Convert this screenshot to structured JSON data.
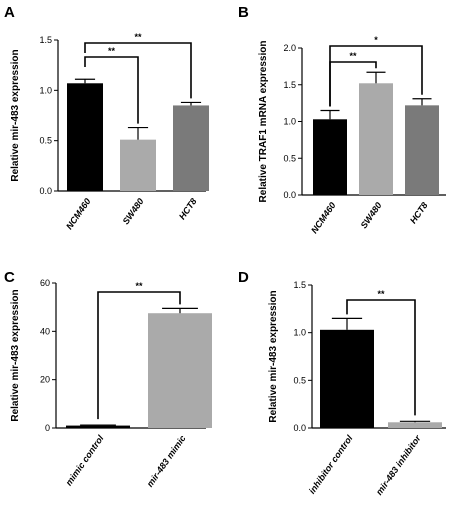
{
  "chart_data": [
    {
      "panel": "A",
      "type": "bar",
      "ylabel": "Relative mir-483 expression",
      "categories": [
        "NCM460",
        "SW480",
        "HCT8"
      ],
      "values": [
        1.07,
        0.51,
        0.85
      ],
      "errors": [
        0.04,
        0.12,
        0.03
      ],
      "colors": [
        "#000000",
        "#aaaaaa",
        "#7a7a7a"
      ],
      "ylim": [
        0,
        1.5
      ],
      "yticks": [
        0,
        0.5,
        1.0,
        1.5
      ],
      "ytick_labels": [
        "0.0",
        "0.5",
        "1.0",
        "1.5"
      ],
      "significance": [
        {
          "from": 0,
          "to": 1,
          "label": "**"
        },
        {
          "from": 0,
          "to": 2,
          "label": "**"
        }
      ]
    },
    {
      "panel": "B",
      "type": "bar",
      "ylabel": "Relative TRAF1 mRNA expression",
      "categories": [
        "NCM460",
        "SW480",
        "HCT8"
      ],
      "values": [
        1.03,
        1.52,
        1.22
      ],
      "errors": [
        0.12,
        0.15,
        0.09
      ],
      "colors": [
        "#000000",
        "#aaaaaa",
        "#7a7a7a"
      ],
      "ylim": [
        0,
        2.0
      ],
      "yticks": [
        0,
        0.5,
        1.0,
        1.5,
        2.0
      ],
      "ytick_labels": [
        "0.0",
        "0.5",
        "1.0",
        "1.5",
        "2.0"
      ],
      "significance": [
        {
          "from": 0,
          "to": 1,
          "label": "**"
        },
        {
          "from": 0,
          "to": 2,
          "label": "*"
        }
      ]
    },
    {
      "panel": "C",
      "type": "bar",
      "ylabel": "Relative mir-483 expression",
      "categories": [
        "mimic control",
        "mir-483 mimic"
      ],
      "values": [
        1.0,
        47.5
      ],
      "errors": [
        0.2,
        2.0
      ],
      "colors": [
        "#000000",
        "#aaaaaa"
      ],
      "ylim": [
        0,
        60
      ],
      "yticks": [
        0,
        20,
        40,
        60
      ],
      "ytick_labels": [
        "0",
        "20",
        "40",
        "60"
      ],
      "significance": [
        {
          "from": 0,
          "to": 1,
          "label": "**"
        }
      ]
    },
    {
      "panel": "D",
      "type": "bar",
      "ylabel": "Relative mir-483 expression",
      "categories": [
        "inhibitor control",
        "mir-483 inhibitor"
      ],
      "values": [
        1.03,
        0.06
      ],
      "errors": [
        0.12,
        0.01
      ],
      "colors": [
        "#000000",
        "#aaaaaa"
      ],
      "ylim": [
        0,
        1.5
      ],
      "yticks": [
        0,
        0.5,
        1.0,
        1.5
      ],
      "ytick_labels": [
        "0.0",
        "0.5",
        "1.0",
        "1.5"
      ],
      "significance": [
        {
          "from": 0,
          "to": 1,
          "label": "**"
        }
      ]
    }
  ]
}
